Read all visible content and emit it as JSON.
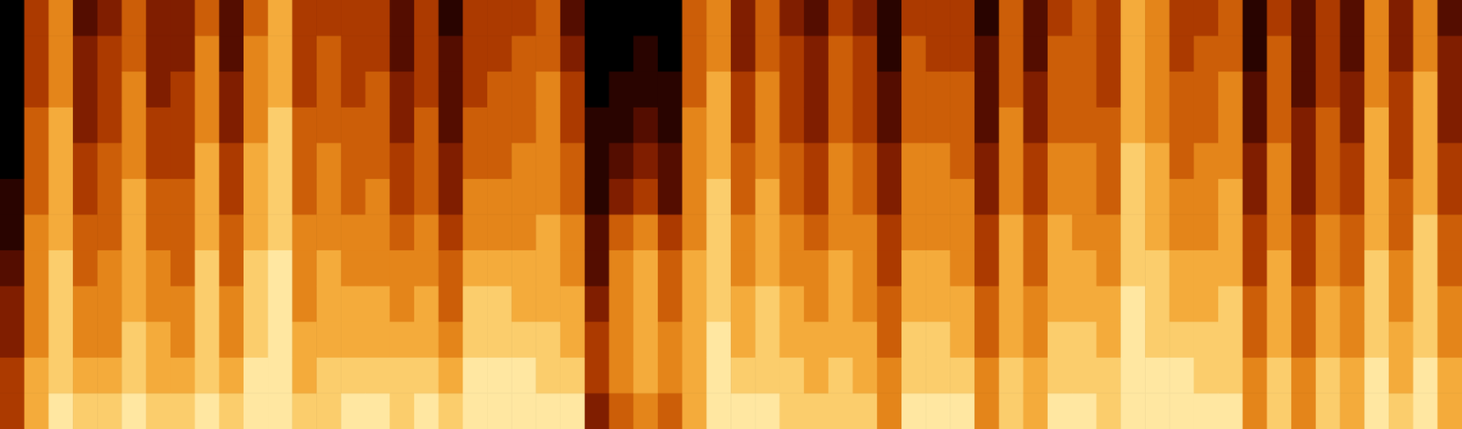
{
  "chart_data": {
    "type": "heatmap",
    "color": "hot",
    "tick_labels": false,
    "grid": false,
    "zlim": [
      0,
      10
    ],
    "cells": [
      [
        4,
        4,
        3,
        3,
        2,
        1,
        1,
        0,
        0,
        0,
        0,
        0
      ],
      [
        7,
        7,
        6,
        6,
        6,
        6,
        5,
        5,
        5,
        4,
        4,
        4
      ],
      [
        9,
        8,
        8,
        8,
        8,
        7,
        7,
        7,
        7,
        6,
        6,
        6
      ],
      [
        8,
        7,
        6,
        6,
        5,
        5,
        4,
        4,
        3,
        3,
        3,
        2
      ],
      [
        8,
        7,
        6,
        6,
        6,
        5,
        5,
        5,
        4,
        4,
        4,
        3
      ],
      [
        9,
        8,
        8,
        7,
        7,
        7,
        7,
        6,
        6,
        6,
        5,
        5
      ],
      [
        8,
        7,
        7,
        6,
        6,
        5,
        5,
        4,
        4,
        3,
        3,
        3
      ],
      [
        8,
        7,
        6,
        6,
        5,
        5,
        5,
        4,
        4,
        4,
        3,
        3
      ],
      [
        9,
        8,
        8,
        8,
        8,
        7,
        7,
        7,
        6,
        6,
        6,
        5
      ],
      [
        8,
        7,
        6,
        6,
        5,
        5,
        4,
        4,
        3,
        3,
        2,
        2
      ],
      [
        9,
        9,
        8,
        8,
        8,
        7,
        7,
        7,
        6,
        6,
        6,
        5
      ],
      [
        9,
        9,
        9,
        9,
        9,
        8,
        8,
        8,
        8,
        7,
        7,
        7
      ],
      [
        8,
        7,
        7,
        6,
        6,
        6,
        5,
        5,
        5,
        4,
        4,
        4
      ],
      [
        8,
        8,
        7,
        7,
        7,
        6,
        6,
        6,
        5,
        5,
        5,
        4
      ],
      [
        9,
        8,
        7,
        7,
        6,
        6,
        5,
        5,
        5,
        4,
        4,
        4
      ],
      [
        9,
        8,
        7,
        7,
        6,
        6,
        6,
        5,
        5,
        5,
        4,
        4
      ],
      [
        8,
        8,
        7,
        6,
        6,
        5,
        4,
        4,
        3,
        3,
        2,
        2
      ],
      [
        9,
        8,
        7,
        7,
        6,
        6,
        5,
        5,
        5,
        4,
        4,
        4
      ],
      [
        8,
        7,
        6,
        5,
        5,
        4,
        3,
        3,
        2,
        2,
        2,
        1
      ],
      [
        9,
        9,
        8,
        8,
        7,
        6,
        6,
        5,
        5,
        4,
        4,
        4
      ],
      [
        9,
        9,
        8,
        8,
        7,
        6,
        6,
        5,
        5,
        5,
        4,
        4
      ],
      [
        9,
        9,
        8,
        7,
        7,
        6,
        6,
        6,
        5,
        5,
        5,
        4
      ],
      [
        9,
        8,
        8,
        7,
        7,
        7,
        6,
        6,
        6,
        6,
        5,
        5
      ],
      [
        9,
        8,
        7,
        7,
        6,
        6,
        5,
        5,
        4,
        4,
        3,
        2
      ],
      [
        3,
        4,
        4,
        3,
        2,
        2,
        1,
        1,
        1,
        0,
        0,
        0
      ],
      [
        5,
        6,
        6,
        6,
        6,
        5,
        3,
        2,
        1,
        1,
        0,
        0
      ],
      [
        6,
        7,
        7,
        7,
        7,
        6,
        4,
        3,
        2,
        1,
        1,
        0
      ],
      [
        5,
        6,
        6,
        5,
        5,
        4,
        2,
        2,
        1,
        1,
        0,
        0
      ],
      [
        7,
        7,
        7,
        7,
        7,
        6,
        6,
        6,
        6,
        5,
        5,
        5
      ],
      [
        9,
        9,
        9,
        8,
        8,
        8,
        8,
        7,
        7,
        7,
        6,
        6
      ],
      [
        9,
        8,
        7,
        7,
        6,
        6,
        5,
        5,
        4,
        4,
        3,
        3
      ],
      [
        9,
        8,
        8,
        8,
        7,
        7,
        7,
        6,
        6,
        6,
        5,
        5
      ],
      [
        8,
        8,
        7,
        7,
        6,
        6,
        5,
        5,
        4,
        4,
        4,
        3
      ],
      [
        8,
        7,
        7,
        6,
        6,
        5,
        4,
        4,
        3,
        3,
        3,
        2
      ],
      [
        8,
        8,
        7,
        7,
        7,
        6,
        6,
        6,
        5,
        5,
        5,
        4
      ],
      [
        8,
        7,
        7,
        6,
        6,
        6,
        5,
        5,
        4,
        4,
        4,
        3
      ],
      [
        6,
        6,
        5,
        5,
        4,
        4,
        3,
        3,
        2,
        2,
        1,
        1
      ],
      [
        9,
        8,
        8,
        7,
        7,
        6,
        6,
        6,
        5,
        5,
        5,
        4
      ],
      [
        9,
        8,
        8,
        7,
        7,
        6,
        6,
        6,
        5,
        5,
        4,
        4
      ],
      [
        9,
        8,
        7,
        7,
        6,
        6,
        6,
        5,
        5,
        5,
        4,
        4
      ],
      [
        6,
        6,
        5,
        5,
        4,
        4,
        3,
        3,
        2,
        2,
        2,
        1
      ],
      [
        8,
        8,
        7,
        7,
        7,
        7,
        6,
        6,
        6,
        5,
        5,
        5
      ],
      [
        7,
        7,
        6,
        6,
        5,
        5,
        4,
        4,
        3,
        3,
        2,
        2
      ],
      [
        9,
        8,
        8,
        7,
        7,
        7,
        6,
        6,
        5,
        5,
        5,
        4
      ],
      [
        9,
        8,
        8,
        7,
        7,
        6,
        6,
        6,
        5,
        5,
        5,
        5
      ],
      [
        8,
        8,
        7,
        7,
        6,
        6,
        5,
        5,
        5,
        4,
        4,
        4
      ],
      [
        9,
        9,
        9,
        9,
        8,
        8,
        8,
        8,
        7,
        7,
        7,
        7
      ],
      [
        9,
        9,
        8,
        8,
        8,
        7,
        7,
        7,
        6,
        6,
        6,
        6
      ],
      [
        9,
        9,
        8,
        7,
        7,
        6,
        6,
        5,
        5,
        5,
        4,
        4
      ],
      [
        9,
        8,
        8,
        7,
        7,
        6,
        6,
        6,
        5,
        5,
        5,
        4
      ],
      [
        9,
        8,
        8,
        8,
        7,
        7,
        7,
        6,
        6,
        6,
        5,
        5
      ],
      [
        6,
        6,
        5,
        5,
        4,
        4,
        3,
        3,
        2,
        2,
        1,
        1
      ],
      [
        8,
        8,
        7,
        7,
        7,
        6,
        6,
        6,
        5,
        5,
        5,
        4
      ],
      [
        6,
        6,
        5,
        5,
        4,
        4,
        3,
        3,
        3,
        2,
        2,
        2
      ],
      [
        8,
        8,
        7,
        7,
        6,
        6,
        5,
        5,
        5,
        4,
        4,
        4
      ],
      [
        7,
        7,
        6,
        6,
        5,
        5,
        4,
        4,
        3,
        3,
        2,
        2
      ],
      [
        9,
        9,
        8,
        8,
        8,
        7,
        7,
        7,
        7,
        6,
        6,
        6
      ],
      [
        8,
        7,
        7,
        6,
        6,
        5,
        5,
        4,
        4,
        4,
        3,
        3
      ],
      [
        9,
        9,
        8,
        8,
        8,
        8,
        7,
        7,
        7,
        7,
        6,
        6
      ],
      [
        7,
        7,
        6,
        6,
        5,
        5,
        4,
        4,
        3,
        3,
        3,
        2
      ]
    ]
  }
}
